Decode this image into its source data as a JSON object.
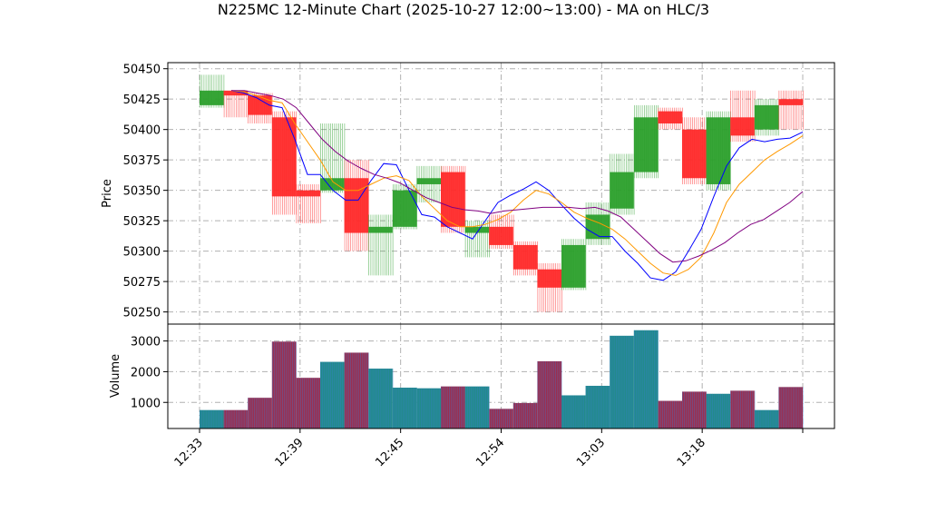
{
  "chart_data": {
    "type": "candlestick",
    "title": "N225MC 12-Minute Chart (2025-10-27 12:00~13:00) - MA on HLC/3",
    "price_panel": {
      "ylabel": "Price",
      "ylim": [
        50240,
        50455
      ],
      "yticks": [
        "50250",
        "50275",
        "50300",
        "50325",
        "50350",
        "50375",
        "50400",
        "50425",
        "50450"
      ],
      "grid": true,
      "candles": [
        {
          "open": 50420,
          "high": 50445,
          "low": 50418,
          "close": 50432,
          "color": "#2ca02c"
        },
        {
          "open": 50432,
          "high": 50430,
          "low": 50410,
          "close": 50428,
          "color": "#ff2a2a"
        },
        {
          "open": 50428,
          "high": 50430,
          "low": 50405,
          "close": 50412,
          "color": "#ff2a2a"
        },
        {
          "open": 50410,
          "high": 50415,
          "low": 50330,
          "close": 50345,
          "color": "#ff2a2a"
        },
        {
          "open": 50350,
          "high": 50355,
          "low": 50323,
          "close": 50345,
          "color": "#ff2a2a"
        },
        {
          "open": 50350,
          "high": 50405,
          "low": 50348,
          "close": 50360,
          "color": "#2ca02c"
        },
        {
          "open": 50360,
          "high": 50375,
          "low": 50300,
          "close": 50315,
          "color": "#ff2a2a"
        },
        {
          "open": 50315,
          "high": 50330,
          "low": 50280,
          "close": 50320,
          "color": "#2ca02c"
        },
        {
          "open": 50320,
          "high": 50355,
          "low": 50318,
          "close": 50350,
          "color": "#2ca02c"
        },
        {
          "open": 50355,
          "high": 50370,
          "low": 50340,
          "close": 50360,
          "color": "#2ca02c"
        },
        {
          "open": 50365,
          "high": 50370,
          "low": 50315,
          "close": 50320,
          "color": "#ff2a2a"
        },
        {
          "open": 50315,
          "high": 50325,
          "low": 50295,
          "close": 50320,
          "color": "#2ca02c"
        },
        {
          "open": 50320,
          "high": 50330,
          "low": 50302,
          "close": 50305,
          "color": "#ff2a2a"
        },
        {
          "open": 50305,
          "high": 50308,
          "low": 50280,
          "close": 50285,
          "color": "#ff2a2a"
        },
        {
          "open": 50285,
          "high": 50290,
          "low": 50250,
          "close": 50270,
          "color": "#ff2a2a"
        },
        {
          "open": 50270,
          "high": 50310,
          "low": 50268,
          "close": 50305,
          "color": "#2ca02c"
        },
        {
          "open": 50310,
          "high": 50340,
          "low": 50305,
          "close": 50330,
          "color": "#2ca02c"
        },
        {
          "open": 50335,
          "high": 50380,
          "low": 50330,
          "close": 50365,
          "color": "#2ca02c"
        },
        {
          "open": 50365,
          "high": 50420,
          "low": 50360,
          "close": 50410,
          "color": "#2ca02c"
        },
        {
          "open": 50415,
          "high": 50418,
          "low": 50400,
          "close": 50405,
          "color": "#ff2a2a"
        },
        {
          "open": 50400,
          "high": 50410,
          "low": 50355,
          "close": 50360,
          "color": "#ff2a2a"
        },
        {
          "open": 50355,
          "high": 50415,
          "low": 50350,
          "close": 50410,
          "color": "#2ca02c"
        },
        {
          "open": 50410,
          "high": 50432,
          "low": 50390,
          "close": 50395,
          "color": "#ff2a2a"
        },
        {
          "open": 50400,
          "high": 50425,
          "low": 50395,
          "close": 50420,
          "color": "#2ca02c"
        },
        {
          "open": 50425,
          "high": 50432,
          "low": 50400,
          "close": 50420,
          "color": "#ff2a2a"
        }
      ],
      "ma_lines": [
        {
          "color": "#0000ff",
          "values": [
            50432,
            50430,
            50426,
            50420,
            50418,
            50392,
            50363,
            50363,
            50350,
            50342,
            50342,
            50358,
            50372,
            50371,
            50350,
            50330,
            50328,
            50320,
            50315,
            50310,
            50325,
            50340,
            50346,
            50351,
            50357,
            50350,
            50338,
            50327,
            50318,
            50312,
            50312,
            50300,
            50290,
            50278,
            50276,
            50283,
            50300,
            50318,
            50345,
            50370,
            50385,
            50392,
            50390,
            50392,
            50393,
            50398
          ]
        },
        {
          "color": "#ff9900",
          "values": [
            50432,
            50431,
            50428,
            50424,
            50422,
            50405,
            50390,
            50375,
            50357,
            50350,
            50350,
            50355,
            50360,
            50362,
            50358,
            50345,
            50335,
            50325,
            50320,
            50320,
            50322,
            50326,
            50332,
            50342,
            50350,
            50347,
            50340,
            50332,
            50327,
            50323,
            50318,
            50310,
            50300,
            50290,
            50282,
            50280,
            50285,
            50295,
            50315,
            50340,
            50355,
            50365,
            50375,
            50382,
            50388,
            50395
          ]
        },
        {
          "color": "#800080",
          "values": [
            50432,
            50432,
            50430,
            50428,
            50425,
            50418,
            50405,
            50392,
            50382,
            50374,
            50368,
            50363,
            50360,
            50356,
            50350,
            50344,
            50340,
            50336,
            50334,
            50333,
            50331,
            50333,
            50334,
            50335,
            50336,
            50336,
            50336,
            50335,
            50336,
            50333,
            50328,
            50318,
            50308,
            50298,
            50291,
            50292,
            50296,
            50301,
            50307,
            50315,
            50322,
            50326,
            50333,
            50340,
            50349
          ]
        }
      ]
    },
    "volume_panel": {
      "ylabel": "Volume",
      "ylim": [
        150,
        3550
      ],
      "yticks": [
        "1000",
        "2000",
        "3000"
      ],
      "bars": [
        {
          "value": 750,
          "color": "#228b8b"
        },
        {
          "value": 750,
          "color": "#9b2f4f"
        },
        {
          "value": 1150,
          "color": "#9b2f4f"
        },
        {
          "value": 2980,
          "color": "#9b2f4f"
        },
        {
          "value": 1800,
          "color": "#9b2f4f"
        },
        {
          "value": 2320,
          "color": "#228b8b"
        },
        {
          "value": 2620,
          "color": "#9b2f4f"
        },
        {
          "value": 2100,
          "color": "#228b8b"
        },
        {
          "value": 1480,
          "color": "#228b8b"
        },
        {
          "value": 1460,
          "color": "#228b8b"
        },
        {
          "value": 1520,
          "color": "#9b2f4f"
        },
        {
          "value": 1520,
          "color": "#228b8b"
        },
        {
          "value": 790,
          "color": "#9b2f4f"
        },
        {
          "value": 980,
          "color": "#9b2f4f"
        },
        {
          "value": 2340,
          "color": "#9b2f4f"
        },
        {
          "value": 1230,
          "color": "#228b8b"
        },
        {
          "value": 1540,
          "color": "#228b8b"
        },
        {
          "value": 3170,
          "color": "#228b8b"
        },
        {
          "value": 3350,
          "color": "#228b8b"
        },
        {
          "value": 1050,
          "color": "#9b2f4f"
        },
        {
          "value": 1350,
          "color": "#9b2f4f"
        },
        {
          "value": 1280,
          "color": "#228b8b"
        },
        {
          "value": 1380,
          "color": "#9b2f4f"
        },
        {
          "value": 750,
          "color": "#228b8b"
        },
        {
          "value": 1500,
          "color": "#9b2f4f"
        }
      ]
    },
    "x_ticks": [
      "12:33",
      "12:39",
      "12:45",
      "12:54",
      "13:03",
      "13:18",
      ""
    ]
  }
}
